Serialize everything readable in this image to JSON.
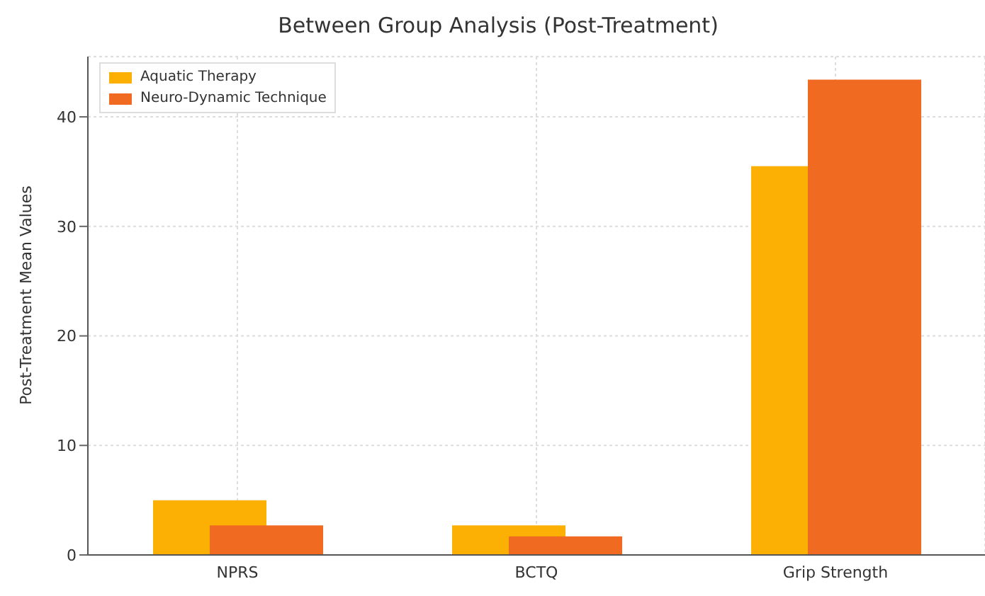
{
  "chart_data": {
    "type": "bar",
    "title": "Between Group Analysis (Post-Treatment)",
    "ylabel": "Post-Treatment Mean Values",
    "categories": [
      "NPRS",
      "BCTQ",
      "Grip Strength"
    ],
    "series": [
      {
        "name": "Aquatic Therapy",
        "color": "#fdb004",
        "values": [
          5.0,
          2.7,
          35.5
        ]
      },
      {
        "name": "Neuro-Dynamic Technique",
        "color": "#f06a22",
        "values": [
          2.7,
          1.7,
          43.4
        ]
      }
    ],
    "ylim": [
      0,
      45.5
    ],
    "yticks": [
      0,
      10,
      20,
      30,
      40
    ],
    "grid": true,
    "legend": "top left"
  }
}
